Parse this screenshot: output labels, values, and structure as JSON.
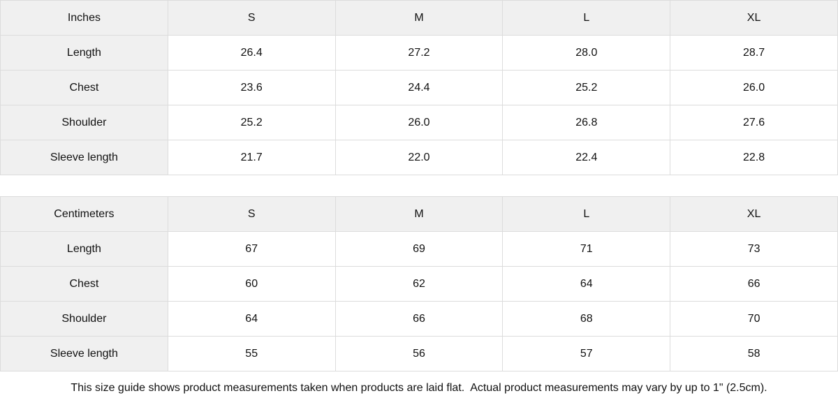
{
  "colors": {
    "header_bg": "#f0f0f0",
    "label_column_bg": "#f0f0f0",
    "border": "#dcdcdc",
    "text": "#111111",
    "background": "#ffffff"
  },
  "chart_data": [
    {
      "type": "table",
      "title": "Inches",
      "columns": [
        "Inches",
        "S",
        "M",
        "L",
        "XL"
      ],
      "rows": [
        [
          "Length",
          "26.4",
          "27.2",
          "28.0",
          "28.7"
        ],
        [
          "Chest",
          "23.6",
          "24.4",
          "25.2",
          "26.0"
        ],
        [
          "Shoulder",
          "25.2",
          "26.0",
          "26.8",
          "27.6"
        ],
        [
          "Sleeve length",
          "21.7",
          "22.0",
          "22.4",
          "22.8"
        ]
      ]
    },
    {
      "type": "table",
      "title": "Centimeters",
      "columns": [
        "Centimeters",
        "S",
        "M",
        "L",
        "XL"
      ],
      "rows": [
        [
          "Length",
          "67",
          "69",
          "71",
          "73"
        ],
        [
          "Chest",
          "60",
          "62",
          "64",
          "66"
        ],
        [
          "Shoulder",
          "64",
          "66",
          "68",
          "70"
        ],
        [
          "Sleeve length",
          "55",
          "56",
          "57",
          "58"
        ]
      ]
    }
  ],
  "footer": {
    "note": "This size guide shows product measurements taken when products are laid flat.  Actual product measurements may vary by up to 1\" (2.5cm)."
  }
}
